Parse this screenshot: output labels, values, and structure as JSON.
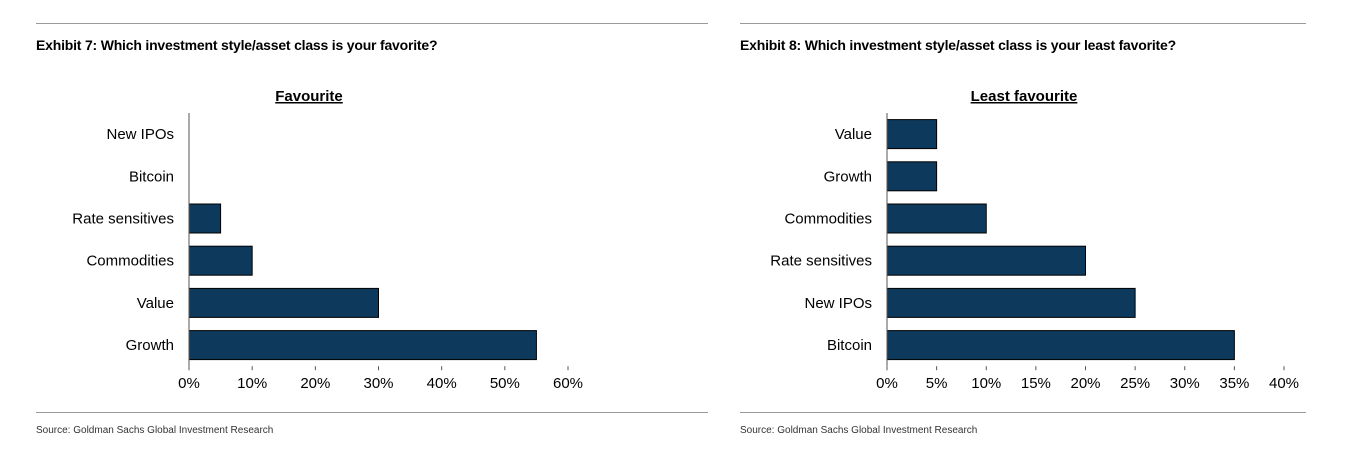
{
  "panels": [
    {
      "exhibit_title": "Exhibit 7: Which investment style/asset class is your favorite?",
      "source": "Source: Goldman Sachs Global Investment Research"
    },
    {
      "exhibit_title": "Exhibit 8: Which investment style/asset class is your least favorite?",
      "source": "Source: Goldman Sachs Global Investment Research"
    }
  ],
  "colors": {
    "bar": "#0d3a5c",
    "bar_outline": "#000000",
    "rule": "#9a9a9a"
  },
  "chart_data": [
    {
      "type": "bar",
      "orientation": "horizontal",
      "title": "Favourite",
      "categories": [
        "New IPOs",
        "Bitcoin",
        "Rate sensitives",
        "Commodities",
        "Value",
        "Growth"
      ],
      "values": [
        0,
        0,
        5,
        10,
        30,
        55
      ],
      "xlim": [
        0,
        60
      ],
      "xticks": [
        0,
        10,
        20,
        30,
        40,
        50,
        60
      ],
      "tick_labels": [
        "0%",
        "10%",
        "20%",
        "30%",
        "40%",
        "50%",
        "60%"
      ],
      "grid": false,
      "legend": "none"
    },
    {
      "type": "bar",
      "orientation": "horizontal",
      "title": "Least favourite",
      "categories": [
        "Value",
        "Growth",
        "Commodities",
        "Rate sensitives",
        "New IPOs",
        "Bitcoin"
      ],
      "values": [
        5,
        5,
        10,
        20,
        25,
        35
      ],
      "xlim": [
        0,
        40
      ],
      "xticks": [
        0,
        5,
        10,
        15,
        20,
        25,
        30,
        35,
        40
      ],
      "tick_labels": [
        "0%",
        "5%",
        "10%",
        "15%",
        "20%",
        "25%",
        "30%",
        "35%",
        "40%"
      ],
      "grid": false,
      "legend": "none"
    }
  ]
}
